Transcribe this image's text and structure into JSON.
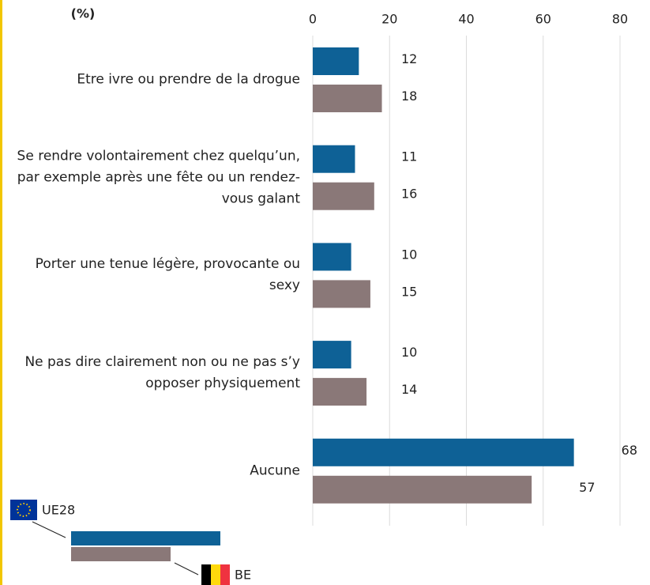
{
  "chart_data": {
    "type": "bar",
    "orientation": "horizontal",
    "title": "(%)",
    "categories": [
      "Etre ivre ou prendre de la drogue",
      "Se rendre volontairement chez quelqu’un, par exemple après une fête ou un rendez-vous galant",
      "Porter une tenue légère, provocante ou sexy",
      "Ne pas dire clairement non ou ne pas s’y opposer physiquement",
      "Aucune"
    ],
    "series": [
      {
        "name": "UE28",
        "color": "#0e6196",
        "values": [
          12,
          11,
          10,
          10,
          68
        ]
      },
      {
        "name": "BE",
        "color": "#8a7878",
        "values": [
          18,
          16,
          15,
          14,
          57
        ]
      }
    ],
    "xlim": [
      0,
      80
    ],
    "xticks": [
      0,
      20,
      40,
      60,
      80
    ],
    "grid": true
  }
}
